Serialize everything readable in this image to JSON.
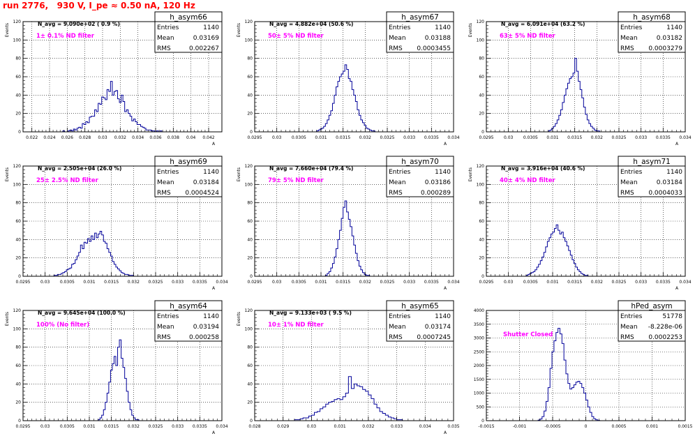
{
  "page_title": "run 2776,   930 V, I_pe ≈ 0.50 nA, 120 Hz",
  "stat_labels": {
    "entries": "Entries",
    "mean": "Mean",
    "rms": "RMS"
  },
  "colors": {
    "title": "#ff0000",
    "annotation": "#ff00ff",
    "histogram": "#000099",
    "grid": "#000000"
  },
  "chart_data": [
    {
      "type": "histogram",
      "name": "h_asym66",
      "navg": "N_avg = 9.090e+02 ( 0.9 %)",
      "annotation": "1± 0.1% ND filter",
      "stats": {
        "entries": "1140",
        "mean": "0.03169",
        "rms": "0.002267"
      },
      "ylabel": "Events",
      "xlabel": "A",
      "xlim": [
        0.021,
        0.0435
      ],
      "ylim": [
        0,
        120
      ],
      "xticks": [
        0.022,
        0.024,
        0.026,
        0.028,
        0.03,
        0.032,
        0.034,
        0.036,
        0.038,
        0.04,
        0.042
      ],
      "xticklabels": [
        "0.022",
        "0.024",
        "0.026",
        "0.028",
        "0.03",
        "0.032",
        "0.034",
        "0.036",
        "0.038",
        "0.04",
        "0.042"
      ],
      "yticks": [
        0,
        20,
        40,
        60,
        80,
        100,
        120
      ],
      "bins": {
        "start": 0.0255,
        "width": 0.0002,
        "counts": [
          1,
          0,
          0,
          1,
          2,
          1,
          3,
          2,
          4,
          5,
          4,
          9,
          8,
          11,
          10,
          16,
          17,
          17,
          24,
          22,
          31,
          30,
          38,
          37,
          35,
          46,
          44,
          55,
          40,
          44,
          45,
          36,
          32,
          40,
          33,
          22,
          24,
          20,
          17,
          12,
          14,
          11,
          8,
          8,
          6,
          5,
          4,
          2,
          2,
          2,
          1,
          1,
          0,
          1,
          0,
          1
        ]
      }
    },
    {
      "type": "histogram",
      "name": "h_asym67",
      "navg": "N_avg = 4.882e+04 (50.6 %)",
      "annotation": "50± 5% ND filter",
      "stats": {
        "entries": "1140",
        "mean": "0.03188",
        "rms": "0.0003455"
      },
      "ylabel": "Events",
      "xlabel": "A",
      "xlim": [
        0.0295,
        0.034
      ],
      "ylim": [
        0,
        120
      ],
      "xticks": [
        0.0295,
        0.03,
        0.0305,
        0.031,
        0.0315,
        0.032,
        0.0325,
        0.033,
        0.0335,
        0.034
      ],
      "xticklabels": [
        "0.0295",
        "0.03",
        "0.0305",
        "0.031",
        "0.0315",
        "0.032",
        "0.0325",
        "0.033",
        "0.0335",
        "0.034"
      ],
      "yticks": [
        0,
        20,
        40,
        60,
        80,
        100,
        120
      ],
      "bins": {
        "start": 0.0309,
        "width": 4e-05,
        "counts": [
          1,
          2,
          3,
          4,
          6,
          9,
          13,
          18,
          23,
          31,
          40,
          49,
          55,
          60,
          63,
          66,
          73,
          68,
          58,
          55,
          46,
          40,
          33,
          24,
          18,
          13,
          10,
          7,
          4,
          3,
          2,
          1,
          1
        ]
      }
    },
    {
      "type": "histogram",
      "name": "h_asym68",
      "navg": "N_avg = 6.091e+04 (63.2 %)",
      "annotation": "63± 5% ND filter",
      "stats": {
        "entries": "1140",
        "mean": "0.03182",
        "rms": "0.0003279"
      },
      "ylabel": "Events",
      "xlabel": "A",
      "xlim": [
        0.0295,
        0.034
      ],
      "ylim": [
        0,
        120
      ],
      "xticks": [
        0.0295,
        0.03,
        0.0305,
        0.031,
        0.0315,
        0.032,
        0.0325,
        0.033,
        0.0335,
        0.034
      ],
      "xticklabels": [
        "0.0295",
        "0.03",
        "0.0305",
        "0.031",
        "0.0315",
        "0.032",
        "0.0325",
        "0.033",
        "0.0335",
        "0.034"
      ],
      "yticks": [
        0,
        20,
        40,
        60,
        80,
        100,
        120
      ],
      "bins": {
        "start": 0.0309,
        "width": 4e-05,
        "counts": [
          1,
          2,
          4,
          6,
          9,
          13,
          18,
          24,
          32,
          40,
          47,
          53,
          58,
          60,
          64,
          80,
          66,
          55,
          46,
          37,
          27,
          19,
          13,
          9,
          6,
          4,
          2,
          1,
          1
        ]
      }
    },
    {
      "type": "histogram",
      "name": "h_asym69",
      "navg": "N_avg = 2.505e+04 (26.0 %)",
      "annotation": "25± 2.5% ND filter",
      "stats": {
        "entries": "1140",
        "mean": "0.03184",
        "rms": "0.0004524"
      },
      "ylabel": "Events",
      "xlabel": "A",
      "xlim": [
        0.0295,
        0.034
      ],
      "ylim": [
        0,
        120
      ],
      "xticks": [
        0.0295,
        0.03,
        0.0305,
        0.031,
        0.0315,
        0.032,
        0.0325,
        0.033,
        0.0335,
        0.034
      ],
      "xticklabels": [
        "0.0295",
        "0.03",
        "0.0305",
        "0.031",
        "0.0315",
        "0.032",
        "0.0325",
        "0.033",
        "0.0335",
        "0.034"
      ],
      "yticks": [
        0,
        20,
        40,
        60,
        80,
        100,
        120
      ],
      "bins": {
        "start": 0.0302,
        "width": 4e-05,
        "counts": [
          1,
          1,
          2,
          2,
          3,
          4,
          5,
          7,
          8,
          9,
          13,
          14,
          18,
          22,
          26,
          34,
          30,
          37,
          36,
          41,
          38,
          44,
          40,
          47,
          42,
          46,
          49,
          45,
          38,
          36,
          30,
          26,
          22,
          16,
          13,
          10,
          8,
          6,
          4,
          3,
          2,
          2,
          1,
          1,
          1
        ]
      }
    },
    {
      "type": "histogram",
      "name": "h_asym70",
      "navg": "N_avg = 7.660e+04 (79.4 %)",
      "annotation": "79± 5% ND filter",
      "stats": {
        "entries": "1140",
        "mean": "0.03186",
        "rms": "0.000289"
      },
      "ylabel": "Events",
      "xlabel": "A",
      "xlim": [
        0.0295,
        0.034
      ],
      "ylim": [
        0,
        120
      ],
      "xticks": [
        0.0295,
        0.03,
        0.0305,
        0.031,
        0.0315,
        0.032,
        0.0325,
        0.033,
        0.0335,
        0.034
      ],
      "xticklabels": [
        "0.0295",
        "0.03",
        "0.0305",
        "0.031",
        "0.0315",
        "0.032",
        "0.0325",
        "0.033",
        "0.0335",
        "0.034"
      ],
      "yticks": [
        0,
        20,
        40,
        60,
        80,
        100,
        120
      ],
      "bins": {
        "start": 0.0311,
        "width": 4e-05,
        "counts": [
          1,
          3,
          5,
          9,
          14,
          21,
          30,
          40,
          50,
          63,
          75,
          82,
          70,
          62,
          54,
          44,
          34,
          25,
          17,
          11,
          7,
          4,
          2,
          1,
          1
        ]
      }
    },
    {
      "type": "histogram",
      "name": "h_asym71",
      "navg": "N_avg = 3.916e+04 (40.6 %)",
      "annotation": "40± 4% ND filter",
      "stats": {
        "entries": "1140",
        "mean": "0.03184",
        "rms": "0.0004033"
      },
      "ylabel": "Events",
      "xlabel": "A",
      "xlim": [
        0.0295,
        0.034
      ],
      "ylim": [
        0,
        120
      ],
      "xticks": [
        0.0295,
        0.03,
        0.0305,
        0.031,
        0.0315,
        0.032,
        0.0325,
        0.033,
        0.0335,
        0.034
      ],
      "xticklabels": [
        "0.0295",
        "0.03",
        "0.0305",
        "0.031",
        "0.0315",
        "0.032",
        "0.0325",
        "0.033",
        "0.0335",
        "0.034"
      ],
      "yticks": [
        0,
        20,
        40,
        60,
        80,
        100,
        120
      ],
      "bins": {
        "start": 0.0304,
        "width": 4e-05,
        "counts": [
          1,
          2,
          3,
          4,
          5,
          7,
          10,
          13,
          17,
          21,
          26,
          32,
          38,
          42,
          46,
          48,
          52,
          56,
          50,
          46,
          48,
          42,
          38,
          33,
          28,
          23,
          18,
          14,
          10,
          7,
          5,
          3,
          2,
          1,
          1
        ]
      }
    },
    {
      "type": "histogram",
      "name": "h_asym64",
      "navg": "N_avg = 9.645e+04 (100.0 %)",
      "annotation": "100% (No filter)",
      "stats": {
        "entries": "1140",
        "mean": "0.03194",
        "rms": "0.000258"
      },
      "ylabel": "Events",
      "xlabel": "A",
      "xlim": [
        0.0295,
        0.034
      ],
      "ylim": [
        0,
        120
      ],
      "xticks": [
        0.0295,
        0.03,
        0.0305,
        0.031,
        0.0315,
        0.032,
        0.0325,
        0.033,
        0.0335,
        0.034
      ],
      "xticklabels": [
        "0.0295",
        "0.03",
        "0.0305",
        "0.031",
        "0.0315",
        "0.032",
        "0.0325",
        "0.033",
        "0.0335",
        "0.034"
      ],
      "yticks": [
        0,
        20,
        40,
        60,
        80,
        100,
        120
      ],
      "bins": {
        "start": 0.0312,
        "width": 4e-05,
        "counts": [
          1,
          3,
          6,
          12,
          20,
          30,
          42,
          55,
          62,
          70,
          60,
          80,
          88,
          68,
          58,
          46,
          32,
          20,
          12,
          6,
          3,
          1,
          1
        ]
      }
    },
    {
      "type": "histogram",
      "name": "h_asym65",
      "navg": "N_avg = 9.133e+03 ( 9.5 %)",
      "annotation": "10± 1% ND filter",
      "stats": {
        "entries": "1140",
        "mean": "0.03174",
        "rms": "0.0007245"
      },
      "ylabel": "Events",
      "xlabel": "A",
      "xlim": [
        0.028,
        0.035
      ],
      "ylim": [
        0,
        120
      ],
      "xticks": [
        0.028,
        0.029,
        0.03,
        0.031,
        0.032,
        0.033,
        0.034,
        0.035
      ],
      "xticklabels": [
        "0.028",
        "0.029",
        "0.03",
        "0.031",
        "0.032",
        "0.033",
        "0.034",
        "0.035"
      ],
      "yticks": [
        0,
        20,
        40,
        60,
        80,
        100,
        120
      ],
      "bins": {
        "start": 0.0294,
        "width": 0.0001,
        "counts": [
          1,
          1,
          2,
          3,
          3,
          5,
          6,
          9,
          10,
          13,
          15,
          18,
          20,
          21,
          23,
          24,
          23,
          26,
          30,
          48,
          35,
          40,
          38,
          37,
          34,
          32,
          28,
          24,
          18,
          14,
          10,
          8,
          6,
          4,
          3,
          2,
          1,
          1
        ]
      }
    },
    {
      "type": "histogram",
      "name": "hPed_asym",
      "navg": "",
      "annotation": "Shutter Closed",
      "stats": {
        "entries": "51778",
        "mean": "-8.228e-06",
        "rms": "0.0002253"
      },
      "ylabel": "",
      "xlabel": "",
      "xlim": [
        -0.0015,
        0.0015
      ],
      "ylim": [
        0,
        4000
      ],
      "xticks": [
        -0.0015,
        -0.001,
        -0.0005,
        0,
        0.0005,
        0.001,
        0.0015
      ],
      "xticklabels": [
        "-0.0015",
        "-0.001",
        "-0.0005",
        "0",
        "0.0005",
        "0.001",
        "0.0015"
      ],
      "yticks": [
        0,
        500,
        1000,
        1500,
        2000,
        2500,
        3000,
        3500,
        4000
      ],
      "bins": {
        "start": -0.00072,
        "width": 3e-05,
        "counts": [
          20,
          60,
          150,
          350,
          700,
          1200,
          1900,
          2500,
          2900,
          3200,
          3350,
          3150,
          2800,
          2200,
          1700,
          1350,
          1150,
          1200,
          1300,
          1400,
          1430,
          1350,
          1200,
          1000,
          750,
          500,
          300,
          150,
          70,
          30,
          10
        ]
      }
    }
  ]
}
